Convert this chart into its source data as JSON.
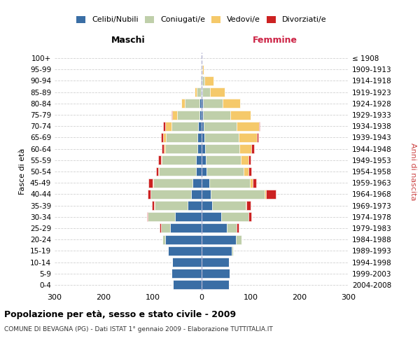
{
  "age_groups": [
    "0-4",
    "5-9",
    "10-14",
    "15-19",
    "20-24",
    "25-29",
    "30-34",
    "35-39",
    "40-44",
    "45-49",
    "50-54",
    "55-59",
    "60-64",
    "65-69",
    "70-74",
    "75-79",
    "80-84",
    "85-89",
    "90-94",
    "95-99",
    "100+"
  ],
  "birth_years": [
    "2004-2008",
    "1999-2003",
    "1994-1998",
    "1989-1993",
    "1984-1988",
    "1979-1983",
    "1974-1978",
    "1969-1973",
    "1964-1968",
    "1959-1963",
    "1954-1958",
    "1949-1953",
    "1944-1948",
    "1939-1943",
    "1934-1938",
    "1929-1933",
    "1924-1928",
    "1919-1923",
    "1914-1918",
    "1909-1913",
    "≤ 1908"
  ],
  "colors": {
    "celibi": "#3A6EA5",
    "coniugati": "#BFCFAA",
    "vedovi": "#F5C96A",
    "divorziati": "#CC2222"
  },
  "maschi": {
    "celibi": [
      58,
      62,
      60,
      68,
      75,
      65,
      55,
      28,
      22,
      18,
      12,
      11,
      9,
      8,
      7,
      5,
      4,
      2,
      1,
      0,
      0
    ],
    "coniugati": [
      0,
      0,
      0,
      1,
      5,
      18,
      55,
      68,
      82,
      80,
      75,
      70,
      65,
      65,
      55,
      45,
      30,
      8,
      2,
      0,
      0
    ],
    "vedovi": [
      0,
      0,
      0,
      0,
      0,
      0,
      0,
      1,
      1,
      2,
      2,
      2,
      3,
      5,
      12,
      10,
      8,
      5,
      0,
      0,
      0
    ],
    "divorziati": [
      0,
      0,
      0,
      0,
      0,
      2,
      2,
      5,
      5,
      8,
      4,
      5,
      5,
      5,
      4,
      2,
      0,
      0,
      0,
      0,
      0
    ]
  },
  "femmine": {
    "celibi": [
      55,
      57,
      55,
      62,
      70,
      52,
      40,
      22,
      18,
      16,
      10,
      8,
      7,
      5,
      4,
      3,
      3,
      2,
      1,
      0,
      0
    ],
    "coniugati": [
      0,
      0,
      0,
      2,
      12,
      20,
      55,
      68,
      110,
      82,
      75,
      72,
      70,
      70,
      68,
      55,
      40,
      15,
      5,
      1,
      0
    ],
    "vedovi": [
      0,
      0,
      0,
      0,
      0,
      0,
      1,
      2,
      3,
      6,
      10,
      15,
      25,
      38,
      45,
      42,
      35,
      30,
      18,
      3,
      0
    ],
    "divorziati": [
      0,
      0,
      0,
      0,
      0,
      3,
      5,
      8,
      20,
      8,
      7,
      5,
      5,
      2,
      2,
      0,
      0,
      0,
      0,
      0,
      0
    ]
  },
  "xlim": 300,
  "ylabel_left": "Fasce di età",
  "ylabel_right": "Anni di nascita",
  "title": "Popolazione per età, sesso e stato civile - 2009",
  "subtitle": "COMUNE DI BEVAGNA (PG) - Dati ISTAT 1° gennaio 2009 - Elaborazione TUTTITALIA.IT",
  "legend_labels": [
    "Celibi/Nubili",
    "Coniugati/e",
    "Vedovi/e",
    "Divorziati/e"
  ],
  "maschi_label": "Maschi",
  "femmine_label": "Femmine",
  "background_color": "#FFFFFF",
  "grid_color": "#CCCCCC"
}
